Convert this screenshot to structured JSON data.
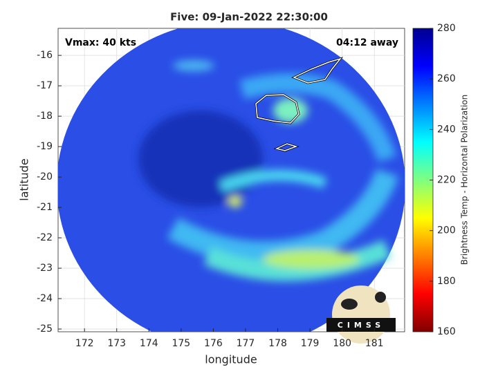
{
  "chart_data": {
    "type": "map",
    "title": "Five: 09-Jan-2022 22:30:00",
    "annotations": [
      "Vmax: 40 kts",
      "04:12 away"
    ],
    "xlabel": "longitude",
    "ylabel": "latitude",
    "xlim": [
      171.18,
      181.94
    ],
    "ylim": [
      -25.09,
      -15.11
    ],
    "xticks": [
      172,
      173,
      174,
      175,
      176,
      177,
      178,
      179,
      180,
      181
    ],
    "yticks": [
      -25,
      -24,
      -23,
      -22,
      -21,
      -20,
      -19,
      -18,
      -17,
      -16
    ],
    "grid": true,
    "colorbar": {
      "label": "Brightness Temp - Horizontal Polarization",
      "lim": [
        160,
        280
      ],
      "ticks": [
        160,
        180,
        200,
        220,
        240,
        260,
        280
      ],
      "cmap": "jet"
    },
    "logo": "CIMSS"
  }
}
